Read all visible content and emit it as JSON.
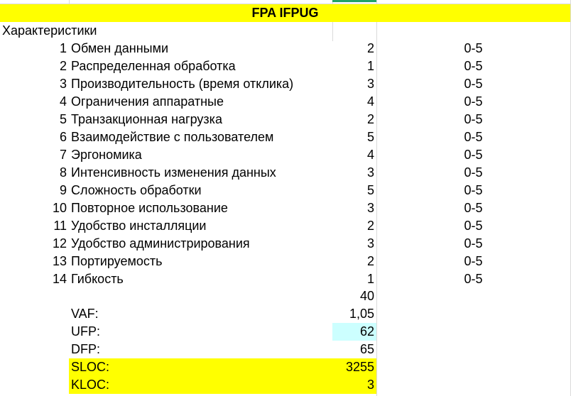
{
  "sheet": {
    "title": "FPA IFPUG",
    "section_label": "Характеристики",
    "characteristics": [
      {
        "num": "1",
        "name": "Обмен данными",
        "value": "2",
        "range": "0-5"
      },
      {
        "num": "2",
        "name": "Распределенная обработка",
        "value": "1",
        "range": "0-5"
      },
      {
        "num": "3",
        "name": "Производительность (время отклика)",
        "value": "3",
        "range": "0-5"
      },
      {
        "num": "4",
        "name": "Ограничения аппаратные",
        "value": "4",
        "range": "0-5"
      },
      {
        "num": "5",
        "name": "Транзакционная нагрузка",
        "value": "2",
        "range": "0-5"
      },
      {
        "num": "6",
        "name": "Взаимодействие с пользователем",
        "value": "5",
        "range": "0-5"
      },
      {
        "num": "7",
        "name": "Эргономика",
        "value": "4",
        "range": "0-5"
      },
      {
        "num": "8",
        "name": "Интенсивность изменения данных",
        "value": "3",
        "range": "0-5"
      },
      {
        "num": "9",
        "name": "Сложность обработки",
        "value": "5",
        "range": "0-5"
      },
      {
        "num": "10",
        "name": "Повторное использование",
        "value": "3",
        "range": "0-5"
      },
      {
        "num": "11",
        "name": "Удобство инсталляции",
        "value": "2",
        "range": "0-5"
      },
      {
        "num": "12",
        "name": "Удобство администрирования",
        "value": "3",
        "range": "0-5"
      },
      {
        "num": "13",
        "name": "Портируемость",
        "value": "2",
        "range": "0-5"
      },
      {
        "num": "14",
        "name": "Гибкость",
        "value": "1",
        "range": "0-5"
      }
    ],
    "total": "40",
    "vaf": {
      "label": "VAF:",
      "value": "1,05"
    },
    "ufp": {
      "label": "UFP:",
      "value": "62"
    },
    "dfp": {
      "label": "DFP:",
      "value": "65"
    },
    "sloc": {
      "label": "SLOC:",
      "value": "3255"
    },
    "kloc": {
      "label": "KLOC:",
      "value": "3"
    }
  },
  "colors": {
    "highlight_yellow": "#ffff00",
    "selected_cell": "#ccffff",
    "gridline": "#dadada",
    "selection_marker": "#21a366"
  }
}
